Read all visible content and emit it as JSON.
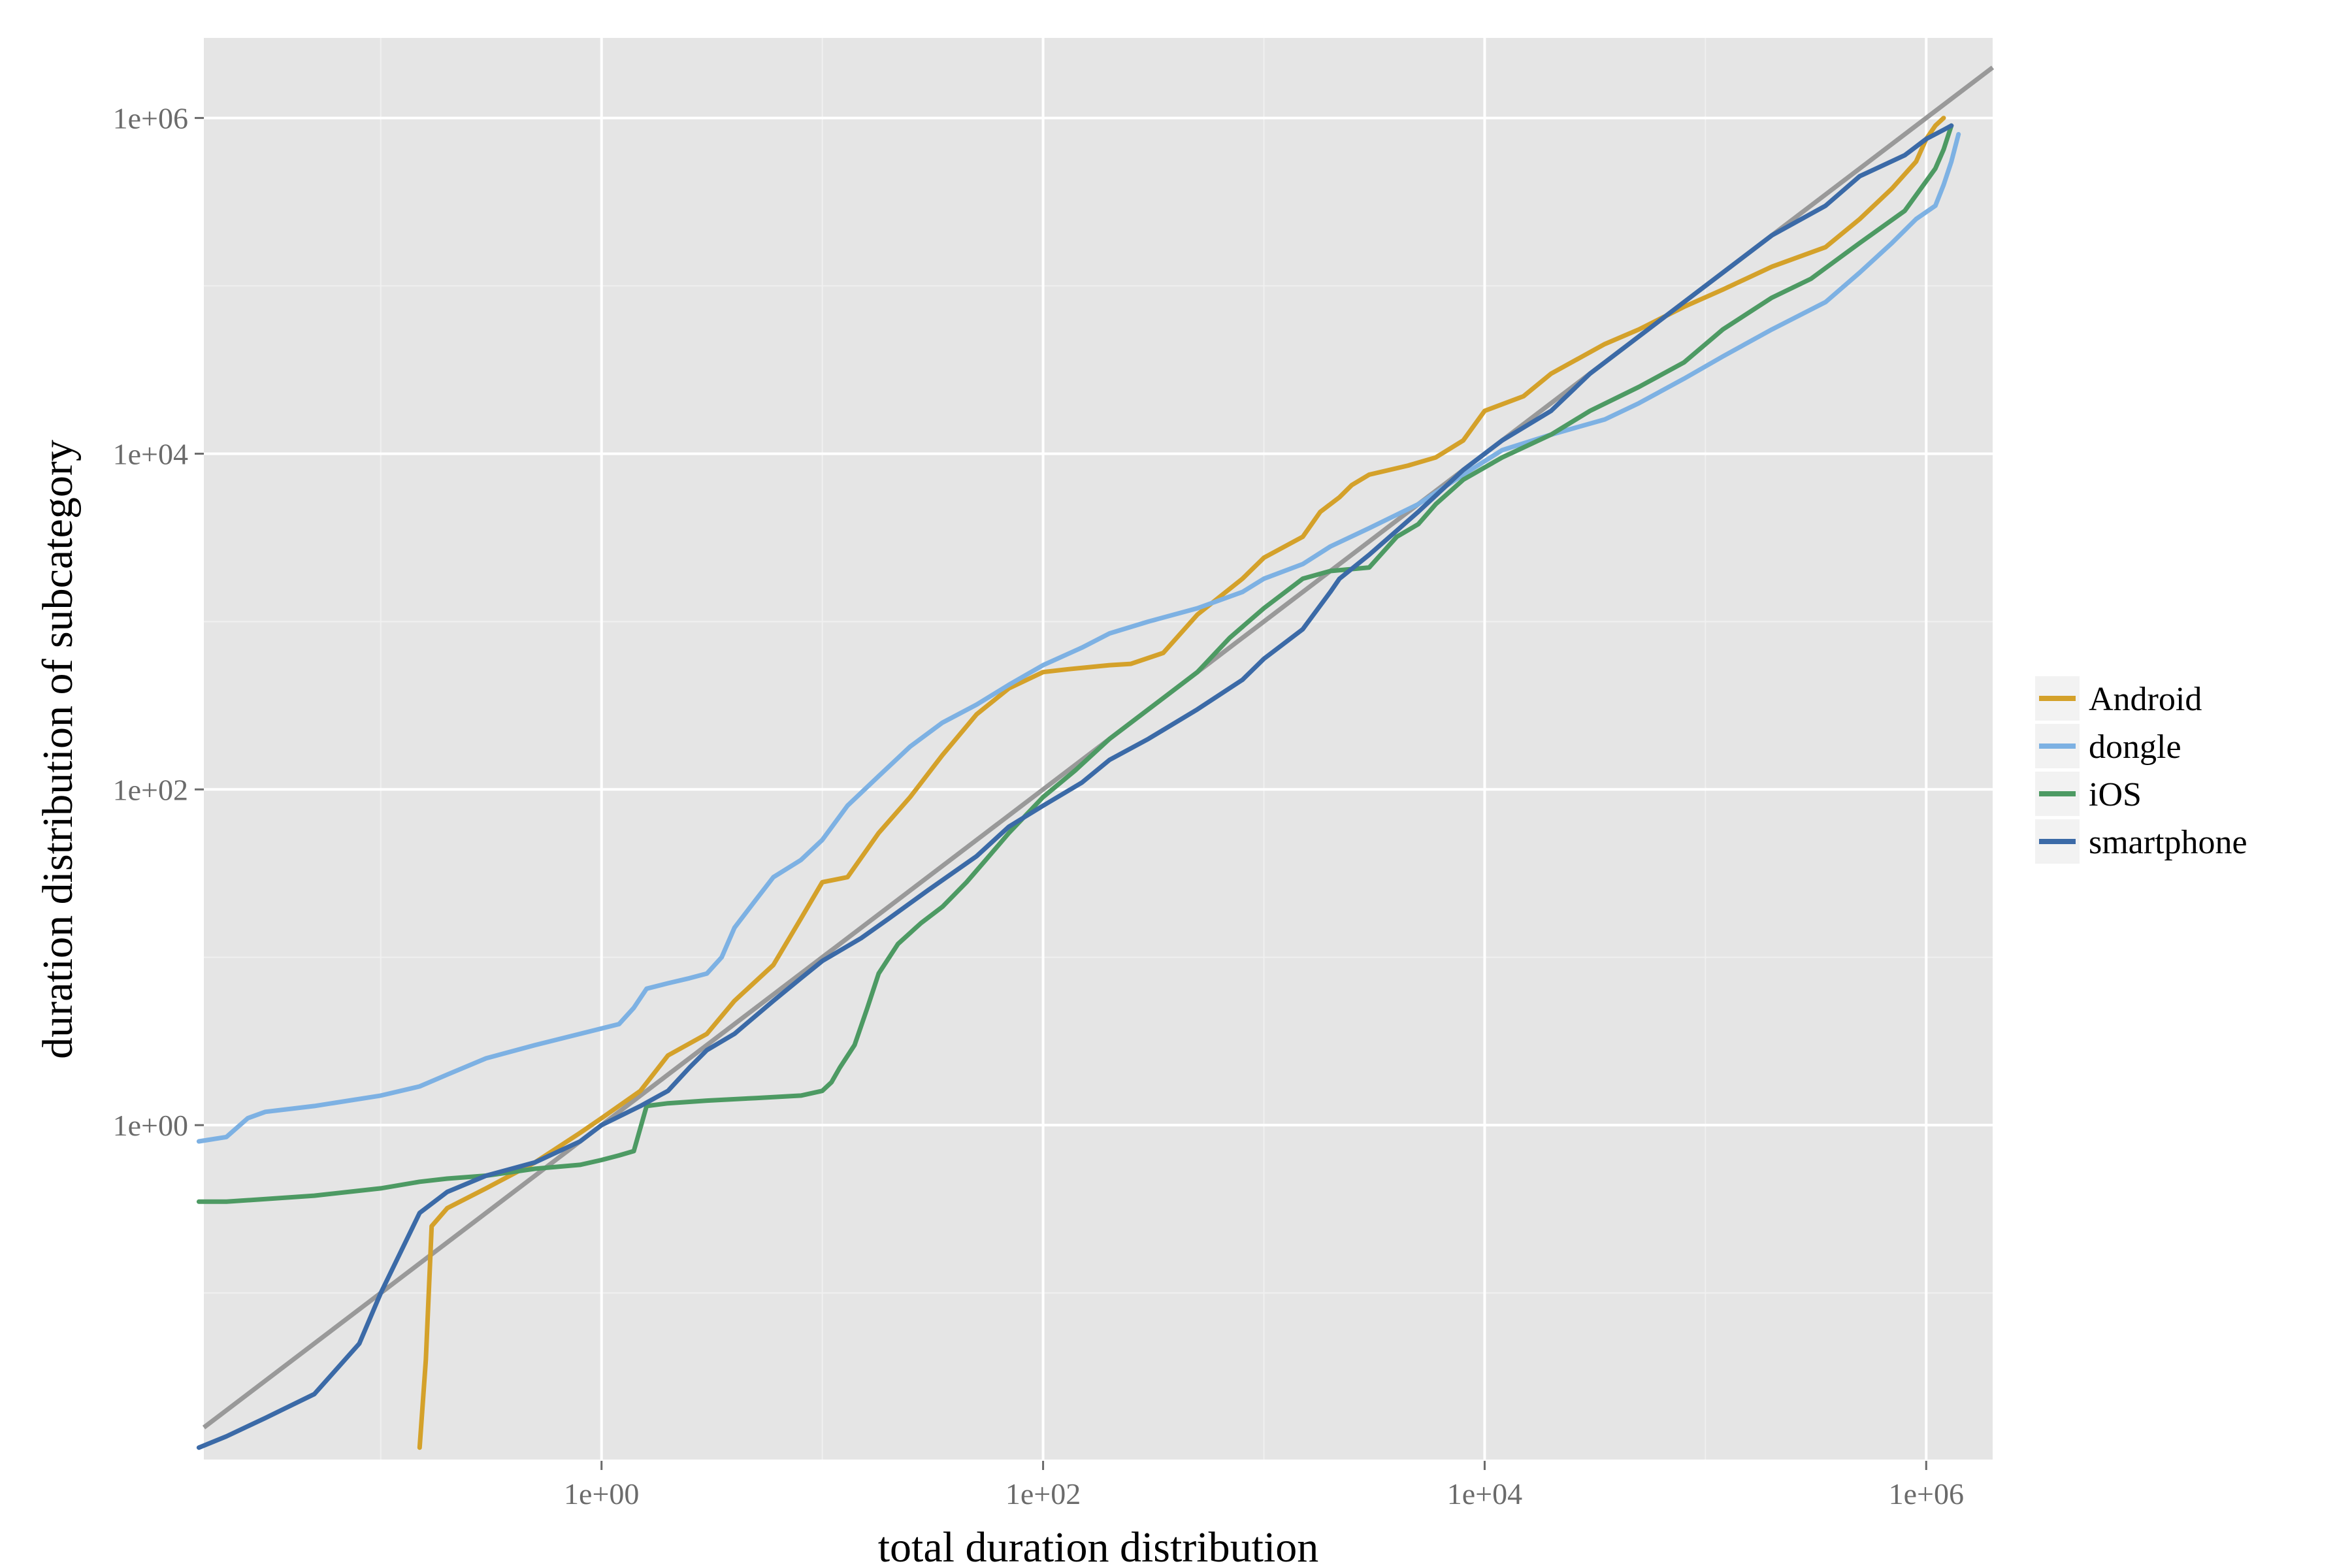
{
  "chart_data": {
    "type": "line",
    "xlabel": "total duration distribution",
    "ylabel": "duration distribution of subcategory",
    "x_scale": "log10",
    "y_scale": "log10",
    "xlim": [
      0.0158,
      2000000
    ],
    "ylim": [
      0.01,
      3000000
    ],
    "x_ticks": [
      {
        "value": 1,
        "label": "1e+00"
      },
      {
        "value": 100,
        "label": "1e+02"
      },
      {
        "value": 10000,
        "label": "1e+04"
      },
      {
        "value": 1000000,
        "label": "1e+06"
      }
    ],
    "y_ticks": [
      {
        "value": 1,
        "label": "1e+00"
      },
      {
        "value": 100,
        "label": "1e+02"
      },
      {
        "value": 10000,
        "label": "1e+04"
      },
      {
        "value": 1000000,
        "label": "1e+06"
      }
    ],
    "grid": true,
    "legend_position": "right",
    "reference_line": {
      "type": "identity",
      "color": "#999999"
    },
    "series": [
      {
        "name": "Android",
        "color": "#D4A12A",
        "points": [
          [
            0.15,
            0.012
          ],
          [
            0.16,
            0.04
          ],
          [
            0.17,
            0.25
          ],
          [
            0.2,
            0.32
          ],
          [
            0.3,
            0.42
          ],
          [
            0.5,
            0.6
          ],
          [
            0.8,
            0.9
          ],
          [
            1.0,
            1.1
          ],
          [
            1.5,
            1.6
          ],
          [
            2.0,
            2.6
          ],
          [
            3.0,
            3.5
          ],
          [
            4.0,
            5.5
          ],
          [
            6.0,
            9
          ],
          [
            8.0,
            17
          ],
          [
            10.0,
            28
          ],
          [
            13.0,
            30
          ],
          [
            18.0,
            55
          ],
          [
            25.0,
            90
          ],
          [
            35.0,
            160
          ],
          [
            50.0,
            280
          ],
          [
            70.0,
            400
          ],
          [
            100.0,
            500
          ],
          [
            130.0,
            520
          ],
          [
            200.0,
            550
          ],
          [
            250.0,
            560
          ],
          [
            350.0,
            650
          ],
          [
            500.0,
            1100
          ],
          [
            800.0,
            1800
          ],
          [
            1000.0,
            2400
          ],
          [
            1500.0,
            3200
          ],
          [
            1800.0,
            4500
          ],
          [
            2200.0,
            5500
          ],
          [
            2500.0,
            6500
          ],
          [
            3000.0,
            7500
          ],
          [
            4500.0,
            8500
          ],
          [
            6000.0,
            9500
          ],
          [
            8000.0,
            12000
          ],
          [
            10000.0,
            18000
          ],
          [
            15000.0,
            22000
          ],
          [
            20000.0,
            30000
          ],
          [
            35000.0,
            45000
          ],
          [
            50000.0,
            55000
          ],
          [
            80000.0,
            75000
          ],
          [
            120000.0,
            95000
          ],
          [
            200000.0,
            130000
          ],
          [
            350000.0,
            170000
          ],
          [
            500000.0,
            250000
          ],
          [
            700000.0,
            380000
          ],
          [
            900000.0,
            550000
          ],
          [
            1000000.0,
            750000
          ],
          [
            1100000.0,
            900000
          ],
          [
            1200000.0,
            1000000
          ]
        ]
      },
      {
        "name": "dongle",
        "color": "#7DB1E3",
        "points": [
          [
            0.015,
            0.8
          ],
          [
            0.02,
            0.85
          ],
          [
            0.025,
            1.1
          ],
          [
            0.03,
            1.2
          ],
          [
            0.05,
            1.3
          ],
          [
            0.1,
            1.5
          ],
          [
            0.15,
            1.7
          ],
          [
            0.2,
            2.0
          ],
          [
            0.3,
            2.5
          ],
          [
            0.5,
            3.0
          ],
          [
            0.8,
            3.5
          ],
          [
            1.2,
            4.0
          ],
          [
            1.4,
            5.0
          ],
          [
            1.6,
            6.5
          ],
          [
            2.0,
            7.0
          ],
          [
            2.5,
            7.5
          ],
          [
            3.0,
            8.0
          ],
          [
            3.5,
            10
          ],
          [
            4.0,
            15
          ],
          [
            5.0,
            22
          ],
          [
            6.0,
            30
          ],
          [
            8.0,
            38
          ],
          [
            10.0,
            50
          ],
          [
            13.0,
            80
          ],
          [
            18.0,
            120
          ],
          [
            25.0,
            180
          ],
          [
            35.0,
            250
          ],
          [
            50.0,
            320
          ],
          [
            70.0,
            420
          ],
          [
            100.0,
            550
          ],
          [
            150.0,
            700
          ],
          [
            200.0,
            850
          ],
          [
            300.0,
            1000
          ],
          [
            500.0,
            1200
          ],
          [
            800.0,
            1500
          ],
          [
            1000.0,
            1800
          ],
          [
            1500.0,
            2200
          ],
          [
            2000.0,
            2800
          ],
          [
            3000.0,
            3600
          ],
          [
            5000.0,
            5000
          ],
          [
            8000.0,
            7500
          ],
          [
            12000.0,
            10500
          ],
          [
            20000.0,
            13000
          ],
          [
            35000.0,
            16000
          ],
          [
            50000.0,
            20000
          ],
          [
            80000.0,
            28000
          ],
          [
            120000.0,
            38000
          ],
          [
            200000.0,
            55000
          ],
          [
            350000.0,
            80000
          ],
          [
            500000.0,
            120000
          ],
          [
            700000.0,
            180000
          ],
          [
            900000.0,
            250000
          ],
          [
            1100000.0,
            300000
          ],
          [
            1200000.0,
            400000
          ],
          [
            1300000.0,
            550000
          ],
          [
            1400000.0,
            800000
          ]
        ]
      },
      {
        "name": "iOS",
        "color": "#4D9A63",
        "points": [
          [
            0.015,
            0.35
          ],
          [
            0.02,
            0.35
          ],
          [
            0.05,
            0.38
          ],
          [
            0.1,
            0.42
          ],
          [
            0.15,
            0.46
          ],
          [
            0.2,
            0.48
          ],
          [
            0.3,
            0.5
          ],
          [
            0.5,
            0.55
          ],
          [
            0.8,
            0.58
          ],
          [
            1.0,
            0.62
          ],
          [
            1.2,
            0.66
          ],
          [
            1.4,
            0.7
          ],
          [
            1.6,
            1.3
          ],
          [
            2.0,
            1.35
          ],
          [
            3.0,
            1.4
          ],
          [
            5.0,
            1.45
          ],
          [
            8.0,
            1.5
          ],
          [
            10.0,
            1.6
          ],
          [
            11.0,
            1.8
          ],
          [
            12.0,
            2.2
          ],
          [
            14.0,
            3.0
          ],
          [
            16.0,
            5.0
          ],
          [
            18.0,
            8.0
          ],
          [
            22.0,
            12
          ],
          [
            28.0,
            16
          ],
          [
            35.0,
            20
          ],
          [
            45.0,
            28
          ],
          [
            55.0,
            38
          ],
          [
            70.0,
            55
          ],
          [
            100.0,
            90
          ],
          [
            140.0,
            130
          ],
          [
            200.0,
            200
          ],
          [
            300.0,
            300
          ],
          [
            500.0,
            500
          ],
          [
            700.0,
            800
          ],
          [
            1000.0,
            1200
          ],
          [
            1500.0,
            1800
          ],
          [
            2000.0,
            2000
          ],
          [
            3000.0,
            2100
          ],
          [
            4000.0,
            3200
          ],
          [
            5000.0,
            3800
          ],
          [
            6000.0,
            5000
          ],
          [
            8000.0,
            7000
          ],
          [
            12000.0,
            9500
          ],
          [
            20000.0,
            13000
          ],
          [
            30000.0,
            18000
          ],
          [
            50000.0,
            25000
          ],
          [
            80000.0,
            35000
          ],
          [
            120000.0,
            55000
          ],
          [
            200000.0,
            85000
          ],
          [
            300000.0,
            110000
          ],
          [
            500000.0,
            180000
          ],
          [
            800000.0,
            280000
          ],
          [
            1100000.0,
            500000
          ],
          [
            1200000.0,
            650000
          ],
          [
            1300000.0,
            900000
          ]
        ]
      },
      {
        "name": "smartphone",
        "color": "#3B6AA7",
        "points": [
          [
            0.015,
            0.012
          ],
          [
            0.02,
            0.014
          ],
          [
            0.03,
            0.018
          ],
          [
            0.05,
            0.025
          ],
          [
            0.08,
            0.05
          ],
          [
            0.1,
            0.1
          ],
          [
            0.15,
            0.3
          ],
          [
            0.2,
            0.4
          ],
          [
            0.3,
            0.5
          ],
          [
            0.5,
            0.6
          ],
          [
            0.8,
            0.8
          ],
          [
            1.0,
            1.0
          ],
          [
            1.5,
            1.3
          ],
          [
            2.0,
            1.6
          ],
          [
            2.5,
            2.2
          ],
          [
            3.0,
            2.8
          ],
          [
            4.0,
            3.5
          ],
          [
            6.0,
            5.5
          ],
          [
            8.0,
            7.5
          ],
          [
            10.0,
            9.5
          ],
          [
            15.0,
            13
          ],
          [
            20.0,
            17
          ],
          [
            30.0,
            25
          ],
          [
            50.0,
            40
          ],
          [
            70.0,
            60
          ],
          [
            100.0,
            80
          ],
          [
            150.0,
            110
          ],
          [
            200.0,
            150
          ],
          [
            300.0,
            200
          ],
          [
            500.0,
            300
          ],
          [
            800.0,
            450
          ],
          [
            1000.0,
            600
          ],
          [
            1500.0,
            900
          ],
          [
            2000.0,
            1500
          ],
          [
            2200.0,
            1800
          ],
          [
            3000.0,
            2500
          ],
          [
            5000.0,
            4500
          ],
          [
            8000.0,
            8000
          ],
          [
            12000.0,
            12000
          ],
          [
            20000.0,
            18000
          ],
          [
            30000.0,
            30000
          ],
          [
            50000.0,
            50000
          ],
          [
            80000.0,
            80000
          ],
          [
            120000.0,
            120000
          ],
          [
            200000.0,
            200000
          ],
          [
            350000.0,
            300000
          ],
          [
            500000.0,
            450000
          ],
          [
            800000.0,
            600000
          ],
          [
            1000000.0,
            750000
          ],
          [
            1200000.0,
            850000
          ],
          [
            1300000.0,
            900000
          ]
        ]
      }
    ]
  }
}
